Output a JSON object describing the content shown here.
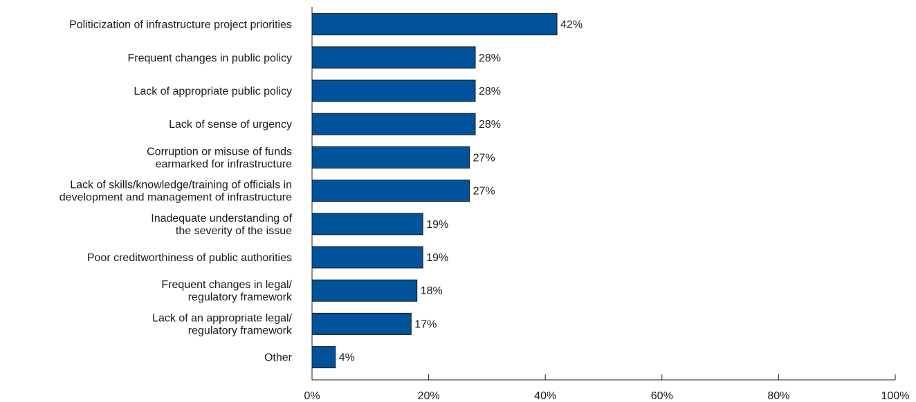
{
  "chart_data": {
    "type": "bar",
    "orientation": "horizontal",
    "categories": [
      [
        "Politicization of infrastructure project priorities"
      ],
      [
        "Frequent changes in public policy"
      ],
      [
        "Lack of appropriate public policy"
      ],
      [
        "Lack of sense of urgency"
      ],
      [
        "Corruption or misuse of funds",
        "earmarked for infrastructure"
      ],
      [
        "Lack of skills/knowledge/training of officials in",
        "development and management of infrastructure"
      ],
      [
        "Inadequate understanding of",
        "the severity of the issue"
      ],
      [
        "Poor creditworthiness of public authorities"
      ],
      [
        "Frequent changes in legal/",
        "regulatory framework"
      ],
      [
        "Lack of an appropriate legal/",
        "regulatory framework"
      ],
      [
        "Other"
      ]
    ],
    "values": [
      42,
      28,
      28,
      28,
      27,
      27,
      19,
      19,
      18,
      17,
      4
    ],
    "value_labels": [
      "42%",
      "28%",
      "28%",
      "28%",
      "27%",
      "27%",
      "19%",
      "19%",
      "18%",
      "17%",
      "4%"
    ],
    "x_ticks": [
      0,
      20,
      40,
      60,
      80,
      100
    ],
    "x_tick_labels": [
      "0%",
      "20%",
      "40%",
      "60%",
      "80%",
      "100%"
    ],
    "xlim": [
      0,
      100
    ],
    "grid": false,
    "bar_color": "#00539b",
    "title": "",
    "xlabel": "",
    "ylabel": ""
  }
}
